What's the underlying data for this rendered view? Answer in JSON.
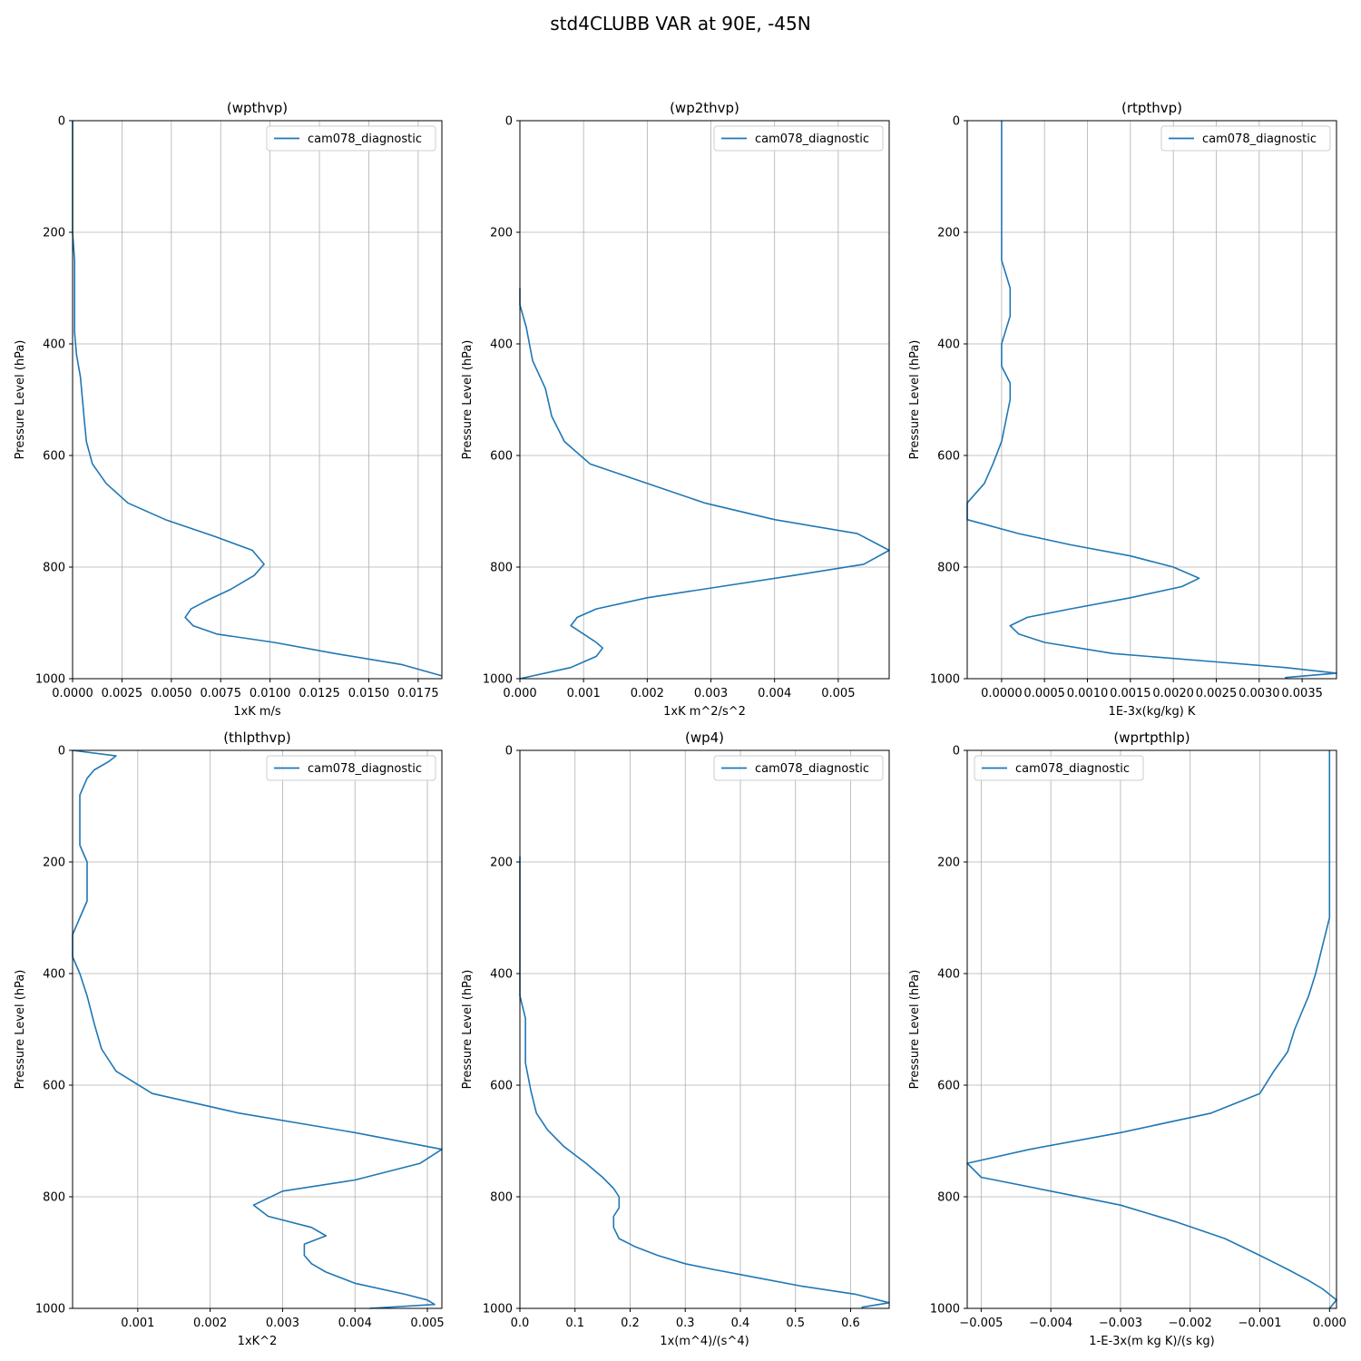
{
  "figure": {
    "title": "std4CLUBB VAR at 90E, -45N"
  },
  "colors": {
    "series": "#1f77b4",
    "grid": "#b0b0b0",
    "axis": "#000000"
  },
  "chart_data": [
    {
      "type": "line",
      "title": "(wpthvp)",
      "xlabel": "1xK m/s",
      "ylabel": "Pressure Level (hPa)",
      "xlim": [
        0,
        0.0187
      ],
      "ylim": [
        1000,
        0
      ],
      "xticks": [
        0,
        0.0025,
        0.005,
        0.0075,
        0.01,
        0.0125,
        0.015,
        0.0175
      ],
      "xtick_labels": [
        "0.0000",
        "0.0025",
        "0.0050",
        "0.0075",
        "0.0100",
        "0.0125",
        "0.0150",
        "0.0175"
      ],
      "yticks": [
        0,
        200,
        400,
        600,
        800,
        1000
      ],
      "ytick_labels": [
        "0",
        "200",
        "400",
        "600",
        "800",
        "1000"
      ],
      "grid": true,
      "legend": "upper right",
      "series": [
        {
          "name": "cam078_diagnostic",
          "x": [
            0.0,
            0.0,
            0.0001,
            0.0001,
            0.0001,
            0.0002,
            0.0004,
            0.0005,
            0.0006,
            0.0007,
            0.001,
            0.0017,
            0.0028,
            0.0047,
            0.0072,
            0.0091,
            0.0097,
            0.0092,
            0.008,
            0.0068,
            0.006,
            0.0057,
            0.0061,
            0.0073,
            0.0102,
            0.0133,
            0.0167,
            0.0187
          ],
          "y": [
            0,
            200,
            250,
            300,
            380,
            420,
            460,
            500,
            540,
            575,
            615,
            650,
            685,
            715,
            745,
            770,
            795,
            815,
            840,
            860,
            875,
            890,
            905,
            920,
            935,
            955,
            975,
            995
          ]
        }
      ]
    },
    {
      "type": "line",
      "title": "(wp2thvp)",
      "xlabel": "1xK m^2/s^2",
      "ylabel": "Pressure Level (hPa)",
      "xlim": [
        0,
        0.0058
      ],
      "ylim": [
        1000,
        0
      ],
      "xticks": [
        0,
        0.001,
        0.002,
        0.003,
        0.004,
        0.005
      ],
      "xtick_labels": [
        "0.000",
        "0.001",
        "0.002",
        "0.003",
        "0.004",
        "0.005"
      ],
      "yticks": [
        0,
        200,
        400,
        600,
        800,
        1000
      ],
      "ytick_labels": [
        "0",
        "200",
        "400",
        "600",
        "800",
        "1000"
      ],
      "grid": true,
      "legend": "upper right",
      "series": [
        {
          "name": "cam078_diagnostic",
          "x": [
            0.0,
            0.0,
            0.0001,
            0.0002,
            0.0004,
            0.0005,
            0.0007,
            0.0011,
            0.002,
            0.0029,
            0.004,
            0.0053,
            0.0058,
            0.0054,
            0.0043,
            0.002,
            0.0012,
            0.0009,
            0.0008,
            0.001,
            0.0012,
            0.0013,
            0.0012,
            0.001,
            0.0008,
            0.0
          ],
          "y": [
            300,
            330,
            370,
            430,
            480,
            530,
            575,
            615,
            650,
            685,
            715,
            740,
            770,
            795,
            815,
            855,
            875,
            890,
            905,
            920,
            935,
            945,
            960,
            970,
            980,
            1000
          ]
        }
      ]
    },
    {
      "type": "line",
      "title": "(rtpthvp)",
      "xlabel": "1E-3x(kg/kg) K",
      "ylabel": "Pressure Level (hPa)",
      "xlim": [
        -0.0004,
        0.0039
      ],
      "ylim": [
        1000,
        0
      ],
      "xticks": [
        0,
        0.0005,
        0.001,
        0.0015,
        0.002,
        0.0025,
        0.003,
        0.0035
      ],
      "xtick_labels": [
        "0.0000",
        "0.0005",
        "0.0010",
        "0.0015",
        "0.0020",
        "0.0025",
        "0.0030",
        "0.0035"
      ],
      "yticks": [
        0,
        200,
        400,
        600,
        800,
        1000
      ],
      "ytick_labels": [
        "0",
        "200",
        "400",
        "600",
        "800",
        "1000"
      ],
      "grid": true,
      "legend": "upper right",
      "series": [
        {
          "name": "cam078_diagnostic",
          "x": [
            0.0,
            0.0,
            0.0,
            0.0,
            0.0001,
            0.0001,
            0.0,
            0.0,
            0.0001,
            0.0001,
            0.0,
            -0.0001,
            -0.0002,
            -0.0004,
            -0.0004,
            0.0002,
            0.0008,
            0.0015,
            0.002,
            0.0023,
            0.0021,
            0.0015,
            0.0008,
            0.0003,
            0.0001,
            0.0002,
            0.0005,
            0.0013,
            0.0025,
            0.0033,
            0.0039,
            0.0033
          ],
          "y": [
            0,
            100,
            200,
            250,
            300,
            350,
            400,
            440,
            470,
            500,
            575,
            615,
            650,
            685,
            715,
            740,
            760,
            780,
            800,
            820,
            835,
            855,
            875,
            890,
            905,
            920,
            935,
            955,
            970,
            980,
            990,
            998
          ]
        }
      ]
    },
    {
      "type": "line",
      "title": "(thlpthvp)",
      "xlabel": "1xK^2",
      "ylabel": "Pressure Level (hPa)",
      "xlim": [
        0.0001,
        0.0052
      ],
      "ylim": [
        1000,
        0
      ],
      "xticks": [
        0.001,
        0.002,
        0.003,
        0.004,
        0.005
      ],
      "xtick_labels": [
        "0.001",
        "0.002",
        "0.003",
        "0.004",
        "0.005"
      ],
      "yticks": [
        0,
        200,
        400,
        600,
        800,
        1000
      ],
      "ytick_labels": [
        "0",
        "200",
        "400",
        "600",
        "800",
        "1000"
      ],
      "grid": true,
      "legend": "upper right",
      "series": [
        {
          "name": "cam078_diagnostic",
          "x": [
            0.0001,
            0.0007,
            0.0006,
            0.0004,
            0.0003,
            0.0002,
            0.0002,
            0.0002,
            0.0002,
            0.0003,
            0.0003,
            0.0003,
            0.0003,
            0.0002,
            0.0001,
            0.0001,
            0.0002,
            0.0003,
            0.0004,
            0.0005,
            0.0007,
            0.0012,
            0.0024,
            0.004,
            0.0052,
            0.0049,
            0.004,
            0.003,
            0.0026,
            0.0028,
            0.0034,
            0.0036,
            0.0033,
            0.0033,
            0.0034,
            0.0036,
            0.004,
            0.0047,
            0.005,
            0.0051,
            0.0042
          ],
          "y": [
            0,
            10,
            20,
            35,
            50,
            80,
            110,
            140,
            170,
            200,
            220,
            245,
            270,
            300,
            330,
            370,
            400,
            440,
            490,
            535,
            575,
            615,
            650,
            685,
            715,
            740,
            770,
            790,
            815,
            835,
            855,
            870,
            885,
            905,
            920,
            935,
            955,
            975,
            985,
            993,
            1000
          ]
        }
      ]
    },
    {
      "type": "line",
      "title": "(wp4)",
      "xlabel": "1x(m^4)/(s^4)",
      "ylabel": "Pressure Level (hPa)",
      "xlim": [
        0,
        0.67
      ],
      "ylim": [
        1000,
        0
      ],
      "xticks": [
        0,
        0.1,
        0.2,
        0.3,
        0.4,
        0.5,
        0.6
      ],
      "xtick_labels": [
        "0.0",
        "0.1",
        "0.2",
        "0.3",
        "0.4",
        "0.5",
        "0.6"
      ],
      "yticks": [
        0,
        200,
        400,
        600,
        800,
        1000
      ],
      "ytick_labels": [
        "0",
        "200",
        "400",
        "600",
        "800",
        "1000"
      ],
      "grid": true,
      "legend": "upper right",
      "series": [
        {
          "name": "cam078_diagnostic",
          "x": [
            0.0,
            0.0,
            0.0,
            0.0,
            0.0,
            0.0,
            0.01,
            0.01,
            0.01,
            0.02,
            0.03,
            0.05,
            0.08,
            0.12,
            0.15,
            0.17,
            0.18,
            0.18,
            0.17,
            0.17,
            0.18,
            0.21,
            0.25,
            0.3,
            0.35,
            0.43,
            0.51,
            0.61,
            0.67,
            0.62
          ],
          "y": [
            190,
            250,
            300,
            350,
            400,
            440,
            480,
            520,
            560,
            610,
            650,
            680,
            710,
            740,
            765,
            785,
            800,
            820,
            835,
            855,
            875,
            890,
            905,
            920,
            930,
            945,
            960,
            975,
            990,
            998
          ]
        }
      ]
    },
    {
      "type": "line",
      "title": "(wprtpthlp)",
      "xlabel": "1-E-3x(m kg K)/(s kg)",
      "ylabel": "Pressure Level (hPa)",
      "xlim": [
        -0.0052,
        0.0001
      ],
      "ylim": [
        1000,
        0
      ],
      "xticks": [
        -0.005,
        -0.004,
        -0.003,
        -0.002,
        -0.001,
        0.0
      ],
      "xtick_labels": [
        "−0.005",
        "−0.004",
        "−0.003",
        "−0.002",
        "−0.001",
        "0.000"
      ],
      "yticks": [
        0,
        200,
        400,
        600,
        800,
        1000
      ],
      "ytick_labels": [
        "0",
        "200",
        "400",
        "600",
        "800",
        "1000"
      ],
      "grid": true,
      "legend": "upper left",
      "series": [
        {
          "name": "cam078_diagnostic",
          "x": [
            0.0,
            0.0,
            0.0,
            0.0,
            -0.0001,
            -0.0002,
            -0.0003,
            -0.0004,
            -0.0005,
            -0.0006,
            -0.0008,
            -0.001,
            -0.0017,
            -0.003,
            -0.0043,
            -0.0052,
            -0.005,
            -0.004,
            -0.003,
            -0.0022,
            -0.0015,
            -0.001,
            -0.0006,
            -0.0003,
            -0.0001,
            0.0,
            0.0001,
            0.0
          ],
          "y": [
            0,
            100,
            200,
            300,
            350,
            400,
            440,
            470,
            500,
            540,
            575,
            615,
            650,
            685,
            715,
            740,
            765,
            790,
            815,
            845,
            875,
            905,
            930,
            950,
            965,
            975,
            985,
            1000
          ]
        }
      ]
    }
  ]
}
